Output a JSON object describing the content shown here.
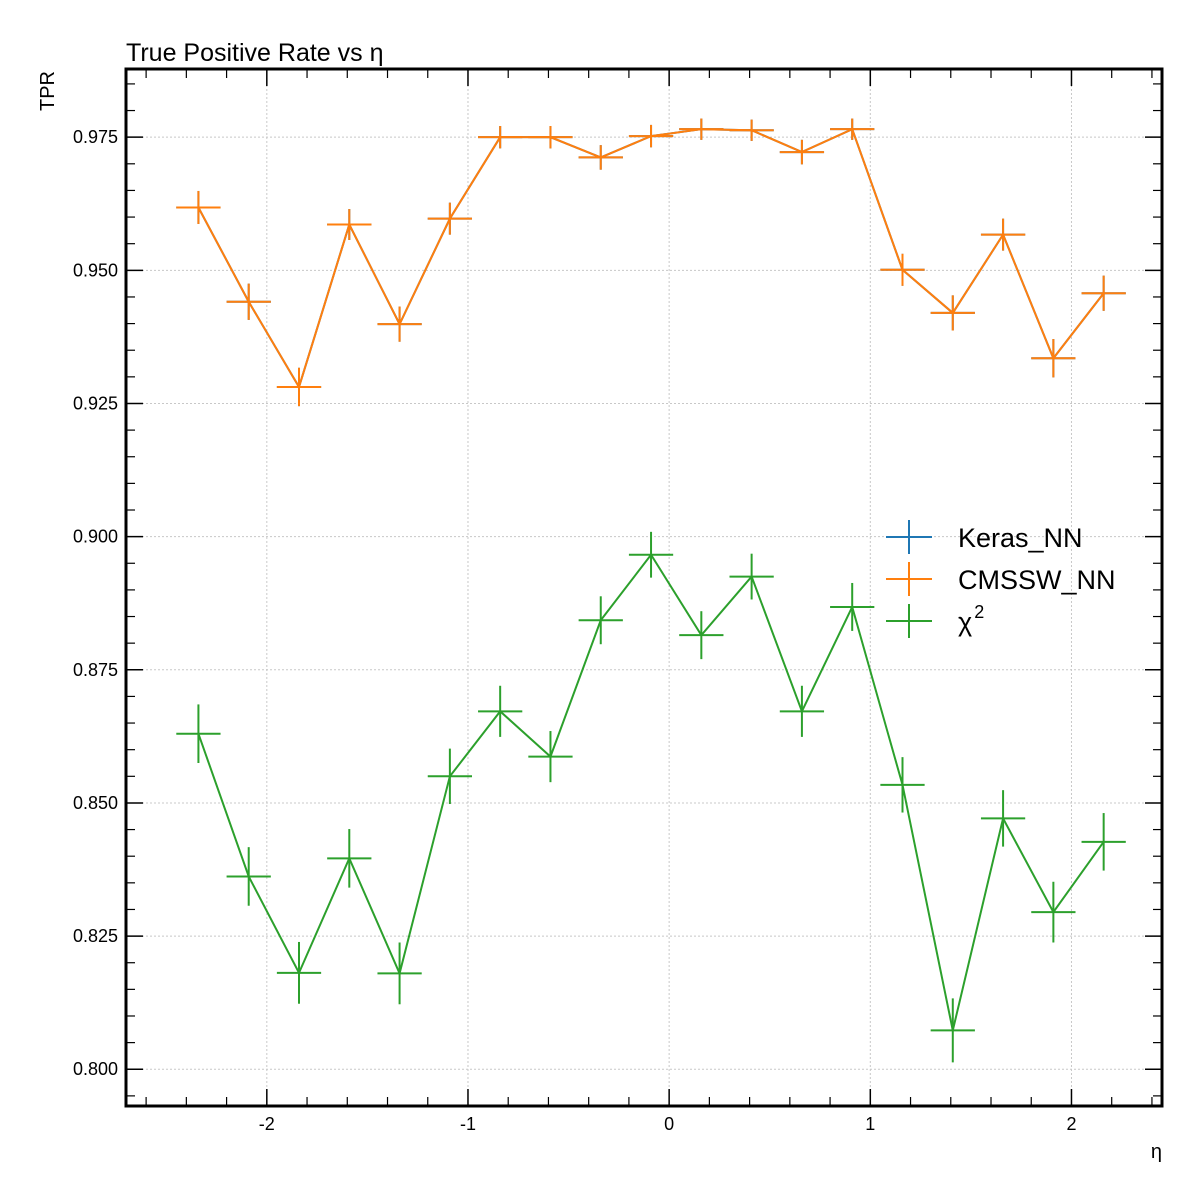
{
  "chart_data": {
    "type": "line",
    "title": "True Positive Rate vs η",
    "xlabel": "η",
    "ylabel": "TPR",
    "xlim": [
      -2.7,
      2.45
    ],
    "ylim": [
      0.7931,
      0.9878
    ],
    "grid": true,
    "legend_position": "right",
    "x_ticks": [
      -2,
      -1,
      0,
      1,
      2
    ],
    "x_tick_labels": [
      "-2",
      "-1",
      "0",
      "1",
      "2"
    ],
    "y_ticks": [
      0.8,
      0.825,
      0.85,
      0.875,
      0.9,
      0.925,
      0.95,
      0.975
    ],
    "y_tick_labels": [
      "0.800",
      "0.825",
      "0.850",
      "0.875",
      "0.900",
      "0.925",
      "0.950",
      "0.975"
    ],
    "x": [
      -2.34,
      -2.09,
      -1.84,
      -1.59,
      -1.34,
      -1.09,
      -0.84,
      -0.59,
      -0.34,
      -0.09,
      0.16,
      0.41,
      0.66,
      0.91,
      1.16,
      1.41,
      1.66,
      1.91,
      2.16
    ],
    "x_err": 0.11,
    "series": [
      {
        "name": "Keras_NN",
        "color": "#1f77b4",
        "values": [
          0.9618,
          0.9441,
          0.9281,
          0.9586,
          0.9399,
          0.9597,
          0.975,
          0.975,
          0.9712,
          0.9752,
          0.9765,
          0.9763,
          0.9722,
          0.9765,
          0.9501,
          0.942,
          0.9567,
          0.9335,
          0.9457
        ],
        "errors": [
          0.0031,
          0.0034,
          0.0036,
          0.0029,
          0.0033,
          0.003,
          0.0021,
          0.0021,
          0.0023,
          0.0021,
          0.002,
          0.002,
          0.0023,
          0.002,
          0.003,
          0.0033,
          0.003,
          0.0036,
          0.0033
        ]
      },
      {
        "name": "CMSSW_NN",
        "color": "#ff7f0e",
        "values": [
          0.9618,
          0.9441,
          0.9281,
          0.9586,
          0.9399,
          0.9597,
          0.975,
          0.975,
          0.9712,
          0.9752,
          0.9765,
          0.9763,
          0.9722,
          0.9765,
          0.9501,
          0.942,
          0.9567,
          0.9335,
          0.9457
        ],
        "errors": [
          0.0031,
          0.0034,
          0.0036,
          0.0029,
          0.0033,
          0.003,
          0.0021,
          0.0021,
          0.0023,
          0.0021,
          0.002,
          0.002,
          0.0023,
          0.002,
          0.003,
          0.0033,
          0.003,
          0.0036,
          0.0033
        ]
      },
      {
        "name": "χ²",
        "color": "#2ca02c",
        "values": [
          0.863,
          0.8362,
          0.8181,
          0.8396,
          0.818,
          0.855,
          0.8672,
          0.8587,
          0.8843,
          0.8966,
          0.8815,
          0.8925,
          0.8672,
          0.8868,
          0.8534,
          0.8073,
          0.8471,
          0.8295,
          0.8427
        ],
        "errors": [
          0.0055,
          0.0055,
          0.0058,
          0.0055,
          0.0058,
          0.0052,
          0.0048,
          0.0048,
          0.0045,
          0.0043,
          0.0045,
          0.0043,
          0.0048,
          0.0045,
          0.0052,
          0.006,
          0.0053,
          0.0057,
          0.0054
        ]
      }
    ]
  },
  "legend": {
    "items": [
      {
        "label": "Keras_NN",
        "color": "#1f77b4"
      },
      {
        "label": "CMSSW_NN",
        "color": "#ff7f0e"
      },
      {
        "label": "χ",
        "superscript": "2",
        "color": "#2ca02c"
      }
    ]
  }
}
